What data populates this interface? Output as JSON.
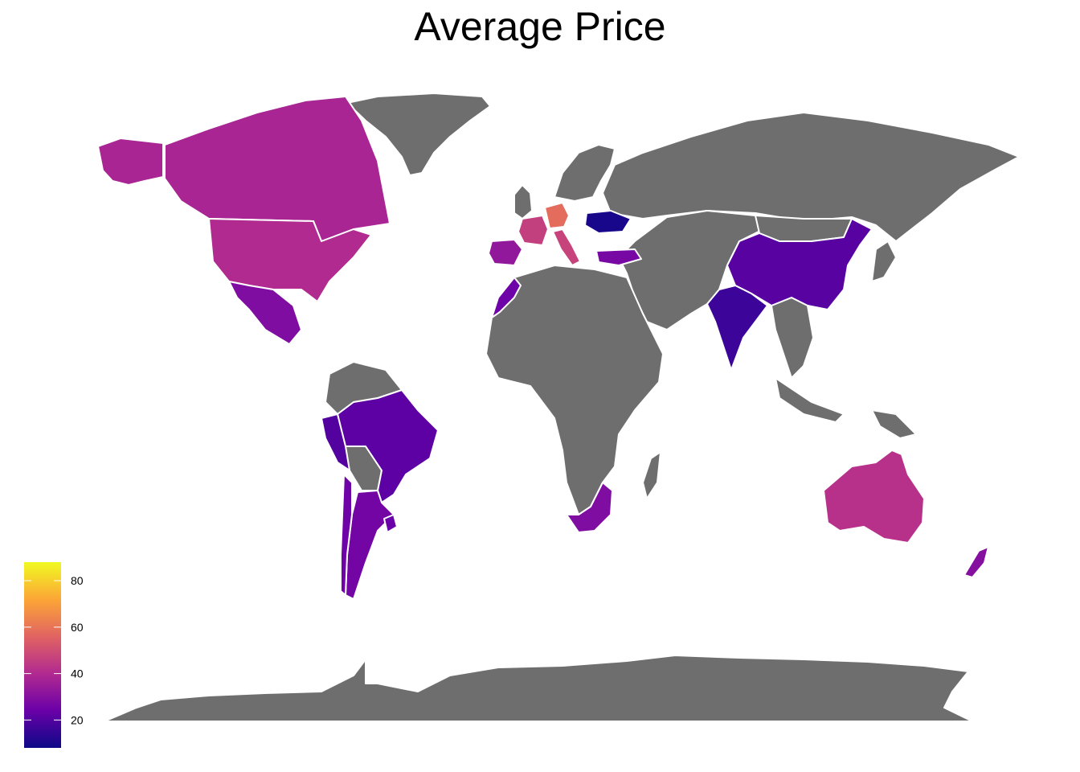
{
  "title": "Average Price",
  "no_data_color": "#6e6e6e",
  "border_color": "#ffffff",
  "legend": {
    "min": 8,
    "max": 88,
    "ticks": [
      "20",
      "40",
      "60",
      "80"
    ],
    "tick_values": [
      20,
      40,
      60,
      80
    ],
    "colormap": [
      "#0d0887",
      "#6a00a8",
      "#b12a90",
      "#e16462",
      "#fca636",
      "#f0f921"
    ]
  },
  "regions": [
    {
      "name": "canada",
      "value": 38
    },
    {
      "name": "alaska",
      "value": 38
    },
    {
      "name": "usa",
      "value": 40
    },
    {
      "name": "mexico",
      "value": 29
    },
    {
      "name": "brazil",
      "value": 22
    },
    {
      "name": "peru",
      "value": 20
    },
    {
      "name": "argentina",
      "value": 26
    },
    {
      "name": "uruguay",
      "value": 24
    },
    {
      "name": "chile",
      "value": 25
    },
    {
      "name": "france",
      "value": 46
    },
    {
      "name": "germany",
      "value": 58
    },
    {
      "name": "italy",
      "value": 47
    },
    {
      "name": "spain",
      "value": 33
    },
    {
      "name": "morocco",
      "value": 25
    },
    {
      "name": "ukraine",
      "value": 10
    },
    {
      "name": "turkey",
      "value": 27
    },
    {
      "name": "china",
      "value": 21
    },
    {
      "name": "india",
      "value": 16
    },
    {
      "name": "south-africa",
      "value": 29
    },
    {
      "name": "australia",
      "value": 42
    },
    {
      "name": "new-zealand",
      "value": 30
    }
  ]
}
